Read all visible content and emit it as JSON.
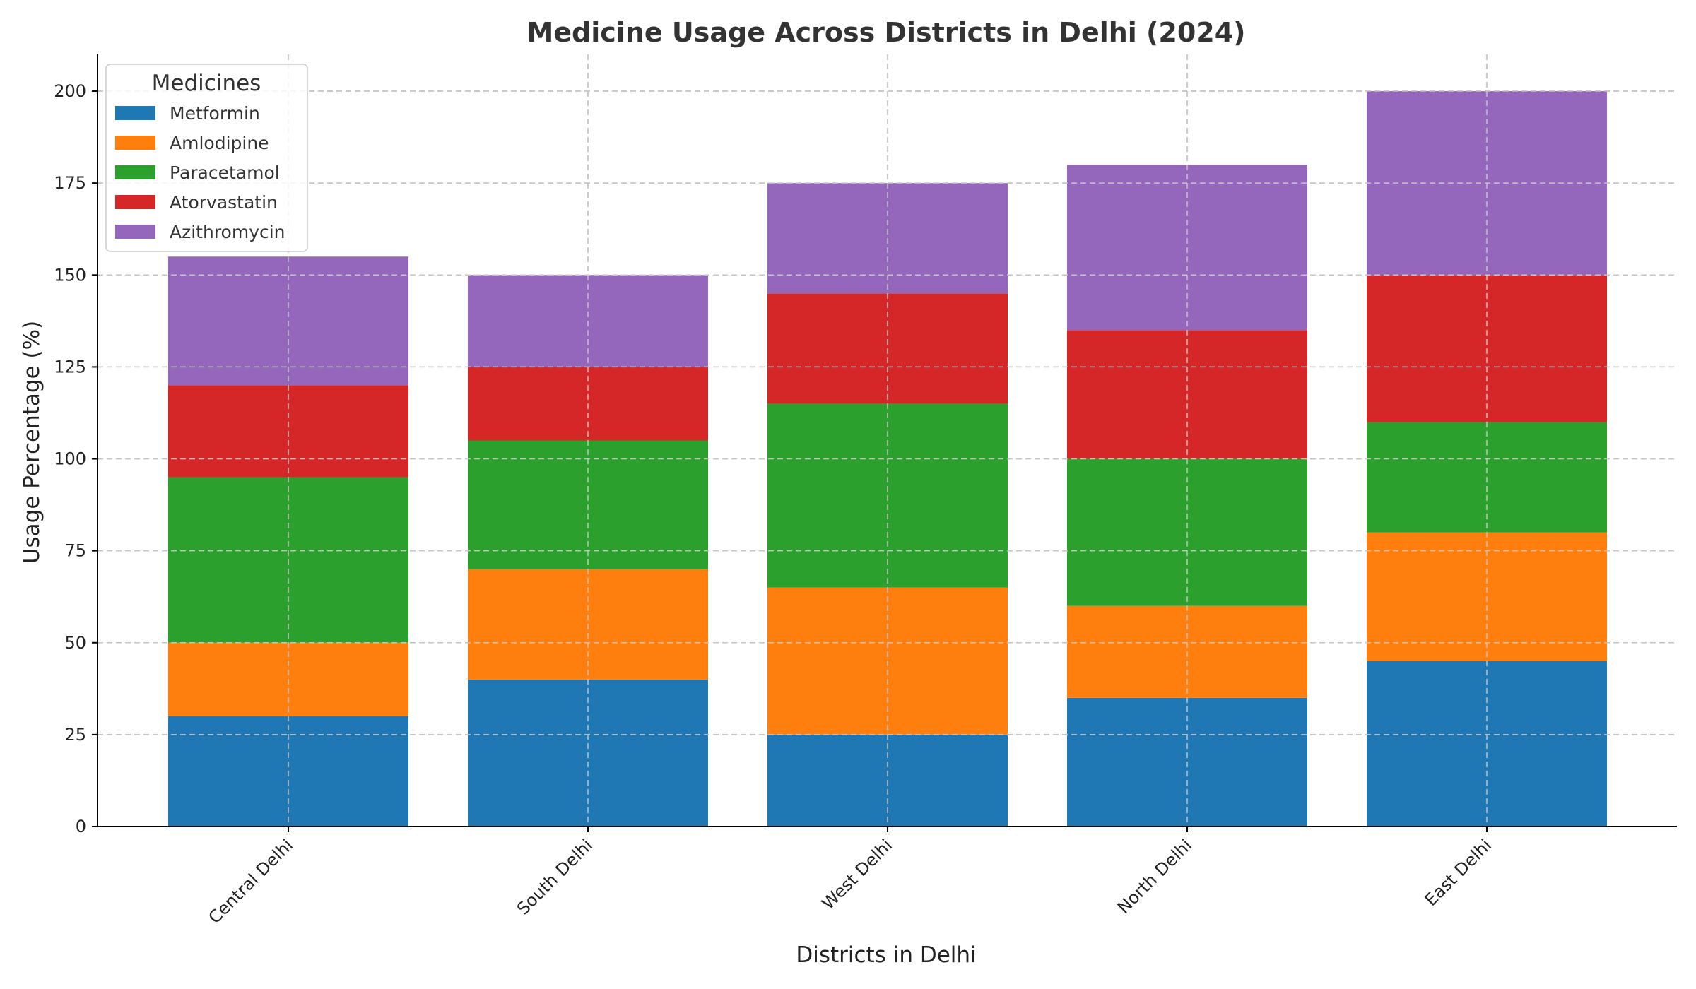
{
  "chart_data": {
    "type": "bar",
    "stacked": true,
    "title": "Medicine Usage Across Districts in Delhi (2024)",
    "xlabel": "Districts in Delhi",
    "ylabel": "Usage Percentage (%)",
    "categories": [
      "Central Delhi",
      "South Delhi",
      "West Delhi",
      "North Delhi",
      "East Delhi"
    ],
    "ylim": [
      0,
      210
    ],
    "yticks": [
      0,
      25,
      50,
      75,
      100,
      125,
      150,
      175,
      200
    ],
    "grid": true,
    "legend": {
      "title": "Medicines",
      "position": "top-left"
    },
    "series": [
      {
        "name": "Metformin",
        "color": "#1f77b4",
        "values": [
          30,
          40,
          25,
          35,
          45
        ]
      },
      {
        "name": "Amlodipine",
        "color": "#ff7f0e",
        "values": [
          20,
          30,
          40,
          25,
          35
        ]
      },
      {
        "name": "Paracetamol",
        "color": "#2ca02c",
        "values": [
          45,
          35,
          50,
          40,
          30
        ]
      },
      {
        "name": "Atorvastatin",
        "color": "#d62728",
        "values": [
          25,
          20,
          30,
          35,
          40
        ]
      },
      {
        "name": "Azithromycin",
        "color": "#9467bd",
        "values": [
          35,
          25,
          30,
          45,
          50
        ]
      }
    ]
  }
}
